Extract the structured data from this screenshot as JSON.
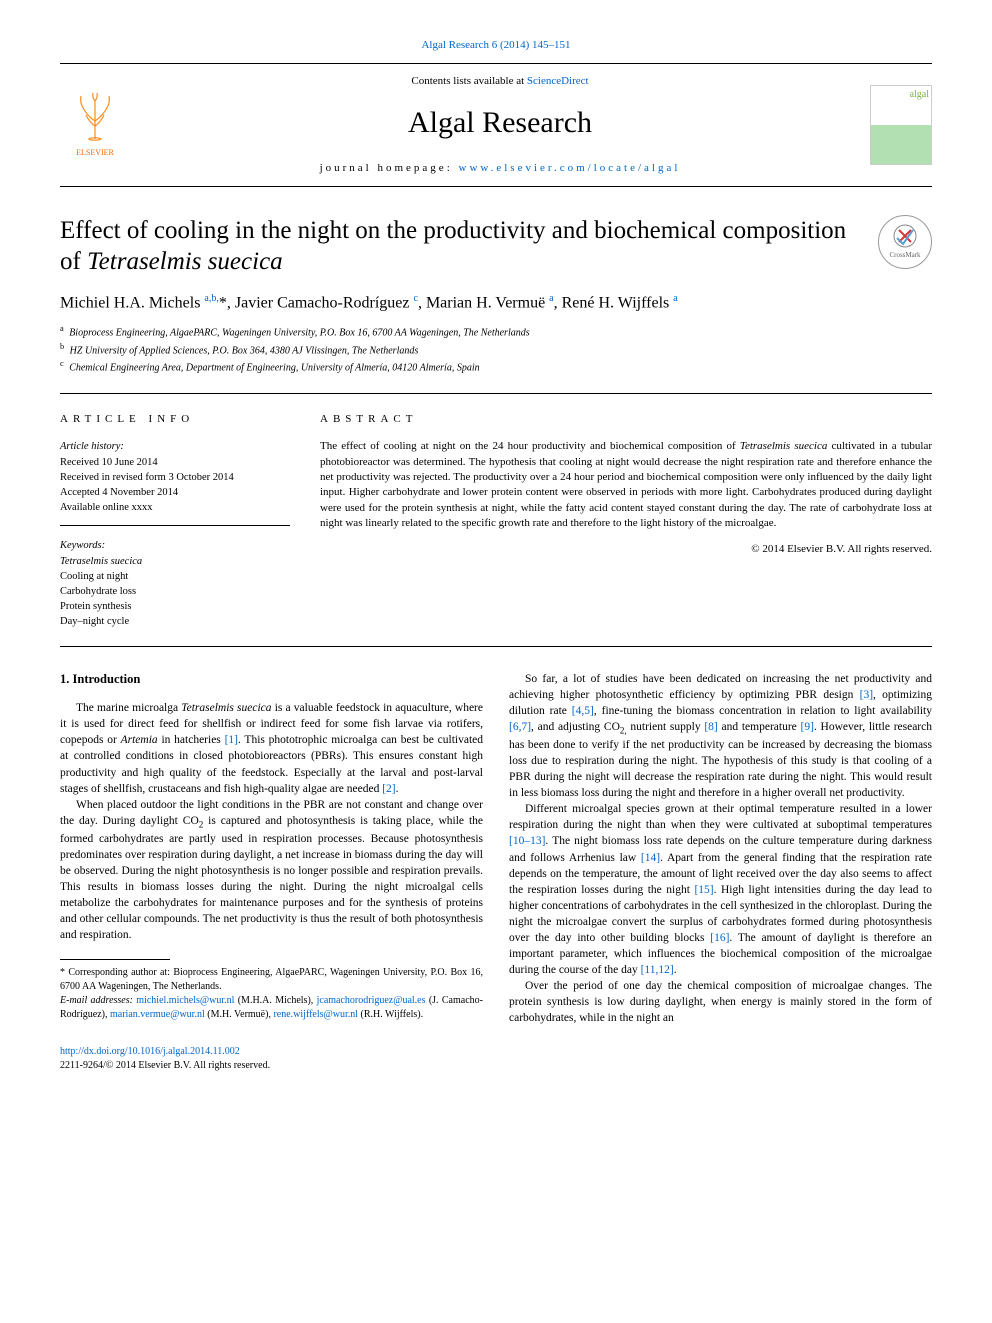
{
  "citation": "Algal Research 6 (2014) 145–151",
  "header": {
    "contents_prefix": "Contents lists available at ",
    "contents_link": "ScienceDirect",
    "journal": "Algal Research",
    "homepage_prefix": "journal homepage: ",
    "homepage_link": "www.elsevier.com/locate/algal",
    "publisher": "ELSEVIER",
    "cover_text": "algal"
  },
  "crossmark": "CrossMark",
  "title_parts": {
    "pre": "Effect of cooling in the night on the productivity and biochemical composition of ",
    "italic": "Tetraselmis suecica"
  },
  "authors_html": "Michiel H.A. Michels <sup>a,b,</sup>*, Javier Camacho-Rodríguez <sup>c</sup>, Marian H. Vermuë <sup>a</sup>, René H. Wijffels <sup>a</sup>",
  "affiliations": [
    {
      "sup": "a",
      "text": "Bioprocess Engineering, AlgaePARC, Wageningen University, P.O. Box 16, 6700 AA Wageningen, The Netherlands"
    },
    {
      "sup": "b",
      "text": "HZ University of Applied Sciences, P.O. Box 364, 4380 AJ Vlissingen, The Netherlands"
    },
    {
      "sup": "c",
      "text": "Chemical Engineering Area, Department of Engineering, University of Almería, 04120 Almería, Spain"
    }
  ],
  "labels": {
    "article_info": "article info",
    "abstract": "abstract"
  },
  "history": {
    "title": "Article history:",
    "received": "Received 10 June 2014",
    "revised": "Received in revised form 3 October 2014",
    "accepted": "Accepted 4 November 2014",
    "online": "Available online xxxx"
  },
  "keywords": {
    "title": "Keywords:",
    "items": [
      "Tetraselmis suecica",
      "Cooling at night",
      "Carbohydrate loss",
      "Protein synthesis",
      "Day–night cycle"
    ]
  },
  "abstract": "The effect of cooling at night on the 24 hour productivity and biochemical composition of Tetraselmis suecica cultivated in a tubular photobioreactor was determined. The hypothesis that cooling at night would decrease the night respiration rate and therefore enhance the net productivity was rejected. The productivity over a 24 hour period and biochemical composition were only influenced by the daily light input. Higher carbohydrate and lower protein content were observed in periods with more light. Carbohydrates produced during daylight were used for the protein synthesis at night, while the fatty acid content stayed constant during the day. The rate of carbohydrate loss at night was linearly related to the specific growth rate and therefore to the light history of the microalgae.",
  "copyright": "© 2014 Elsevier B.V. All rights reserved.",
  "intro": {
    "heading": "1. Introduction",
    "p1_pre": "The marine microalga ",
    "p1_it": "Tetraselmis suecica",
    "p1_mid": " is a valuable feedstock in aquaculture, where it is used for direct feed for shellfish or indirect feed for some fish larvae via rotifers, copepods or ",
    "p1_it2": "Artemia",
    "p1_post": " in hatcheries ",
    "p1_ref": "[1]",
    "p1_end": ". This phototrophic microalga can best be cultivated at controlled conditions in closed photobioreactors (PBRs). This ensures constant high productivity and high quality of the feedstock. Especially at the larval and post-larval stages of shellfish, crustaceans and fish high-quality algae are needed ",
    "p1_ref2": "[2]",
    "p1_dot": ".",
    "p2": "When placed outdoor the light conditions in the PBR are not constant and change over the day. During daylight CO",
    "p2_sub": "2",
    "p2_b": " is captured and photosynthesis is taking place, while the formed carbohydrates are partly used in respiration processes. Because photosynthesis predominates over respiration during daylight, a net increase in biomass during the day will be observed. During the night photosynthesis is no longer possible and respiration prevails. This results in biomass losses during the night. During the night microalgal cells metabolize the carbohydrates for maintenance purposes and for the synthesis of proteins and other cellular compounds. The net productivity is thus the result of both photosynthesis and respiration.",
    "p3_a": "So far, a lot of studies have been dedicated on increasing the net productivity and achieving higher photosynthetic efficiency by optimizing PBR design ",
    "p3_r1": "[3]",
    "p3_b": ", optimizing dilution rate ",
    "p3_r2": "[4,5]",
    "p3_c": ", fine-tuning the biomass concentration in relation to light availability ",
    "p3_r3": "[6,7]",
    "p3_d": ", and adjusting CO",
    "p3_sub": "2,",
    "p3_e": " nutrient supply ",
    "p3_r4": "[8]",
    "p3_f": " and temperature ",
    "p3_r5": "[9]",
    "p3_g": ". However, little research has been done to verify if the net productivity can be increased by decreasing the biomass loss due to respiration during the night. The hypothesis of this study is that cooling of a PBR during the night will decrease the respiration rate during the night. This would result in less biomass loss during the night and therefore in a higher overall net productivity.",
    "p4_a": "Different microalgal species grown at their optimal temperature resulted in a lower respiration during the night than when they were cultivated at suboptimal temperatures ",
    "p4_r1": "[10–13]",
    "p4_b": ". The night biomass loss rate depends on the culture temperature during darkness and follows Arrhenius law ",
    "p4_r2": "[14]",
    "p4_c": ". Apart from the general finding that the respiration rate depends on the temperature, the amount of light received over the day also seems to affect the respiration losses during the night ",
    "p4_r3": "[15]",
    "p4_d": ". High light intensities during the day lead to higher concentrations of carbohydrates in the cell synthesized in the chloroplast. During the night the microalgae convert the surplus of carbohydrates formed during photosynthesis over the day into other building blocks ",
    "p4_r4": "[16]",
    "p4_e": ". The amount of daylight is therefore an important parameter, which influences the biochemical composition of the microalgae during the course of the day ",
    "p4_r5": "[11,12]",
    "p4_f": ".",
    "p5": "Over the period of one day the chemical composition of microalgae changes. The protein synthesis is low during daylight, when energy is mainly stored in the form of carbohydrates, while in the night an"
  },
  "footnotes": {
    "corr": "* Corresponding author at: Bioprocess Engineering, AlgaePARC, Wageningen University, P.O. Box 16, 6700 AA Wageningen, The Netherlands.",
    "email_label": "E-mail addresses: ",
    "emails": [
      {
        "addr": "michiel.michels@wur.nl",
        "who": " (M.H.A. Michels), "
      },
      {
        "addr": "jcamachorodriguez@ual.es",
        "who": " (J. Camacho-Rodríguez), "
      },
      {
        "addr": "marian.vermue@wur.nl",
        "who": " (M.H. Vermuë), "
      },
      {
        "addr": "rene.wijffels@wur.nl",
        "who": " (R.H. Wijffels)."
      }
    ]
  },
  "footer": {
    "doi": "http://dx.doi.org/10.1016/j.algal.2014.11.002",
    "issn_copy": "2211-9264/© 2014 Elsevier B.V. All rights reserved."
  }
}
